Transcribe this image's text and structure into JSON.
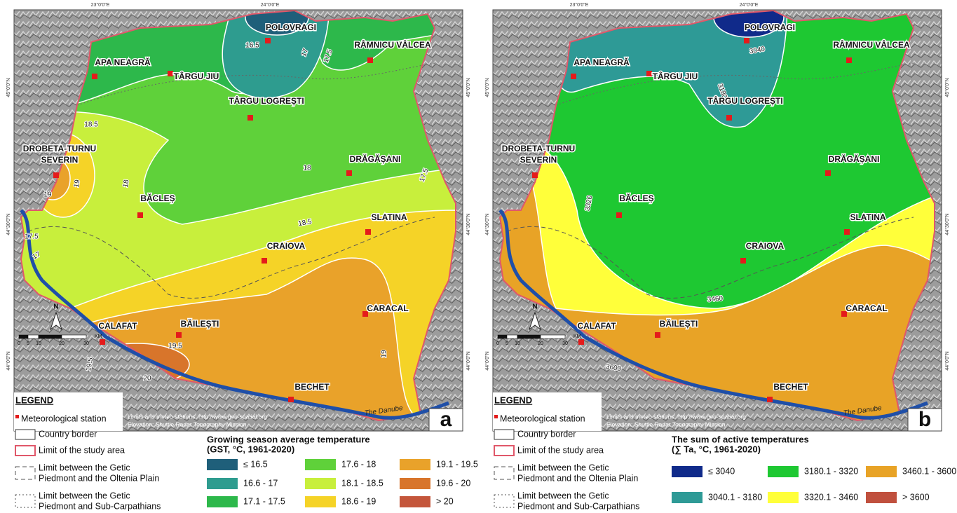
{
  "coordinate_labels": {
    "top": [
      "23°0'0\"E",
      "24°0'0\"E"
    ],
    "side": [
      "45°0'0\"N",
      "44°30'0\"N",
      "44°0'0\"N"
    ]
  },
  "stations": [
    "POLOVRAGI",
    "RÂMNICU VÂLCEA",
    "APA NEAGRĂ",
    "TÂRGU JIU",
    "TÂRGU LOGREȘTI",
    [
      "DROBETA-TURNU",
      "SEVERIN"
    ],
    "DRĂGĂȘANI",
    "BĂCLEȘ",
    "SLATINA",
    "CRAIOVA",
    "CARACAL",
    "CALAFAT",
    "BĂILEȘTI",
    "BECHET"
  ],
  "north_arrow": "N",
  "scale_bar": [
    "0",
    "5",
    "10",
    "20",
    "30",
    "KM"
  ],
  "source": [
    "Limits and meteo stations: http://www.geo-spatial.org",
    "Elevation: Shuttle Radar Topography Mission"
  ],
  "river": "The Danube",
  "legend": {
    "title": "LEGEND",
    "items": [
      [
        "Meteorological station"
      ],
      [
        "Country border"
      ],
      [
        "Limit of the study area"
      ],
      [
        "Limit between the Getic",
        "Piedmont and the Oltenia Plain"
      ],
      [
        "Limit between the Getic",
        "Piedmont and Sub-Carpathians"
      ]
    ]
  },
  "panels": [
    {
      "letter": "a",
      "title": [
        "Growing season average temperature",
        "(GST, °C, 1961-2020)"
      ],
      "classes": [
        {
          "label": "≤ 16.5",
          "color": "#1f5f7a"
        },
        {
          "label": "16.6 - 17",
          "color": "#2e9c8f"
        },
        {
          "label": "17.1 - 17.5",
          "color": "#2db84b"
        },
        {
          "label": "17.6 - 18",
          "color": "#5fd13a"
        },
        {
          "label": "18.1 - 18.5",
          "color": "#c8ef3c"
        },
        {
          "label": "18.6 - 19",
          "color": "#f5d327"
        },
        {
          "label": "19.1 - 19.5",
          "color": "#e9a22a"
        },
        {
          "label": "19.6 - 20",
          "color": "#d8752b"
        },
        {
          "label": "> 20",
          "color": "#c4563b"
        }
      ],
      "contour_labels": [
        "16.5",
        "17",
        "17.5",
        "18.5",
        "19",
        "19",
        "18",
        "18",
        "17.5",
        "18.5",
        "17.5",
        "17",
        "19.5",
        "19",
        "19.5",
        "20"
      ]
    },
    {
      "letter": "b",
      "title": [
        "The sum of active temperatures",
        "(∑ Ta, °C, 1961-2020)"
      ],
      "classes": [
        {
          "label": "≤ 3040",
          "color": "#102a8a"
        },
        {
          "label": "3040.1 - 3180",
          "color": "#2e9a96"
        },
        {
          "label": "3180.1 - 3320",
          "color": "#1ec832"
        },
        {
          "label": "3320.1 - 3460",
          "color": "#ffff3a"
        },
        {
          "label": "3460.1 - 3600",
          "color": "#e8a326"
        },
        {
          "label": "> 3600",
          "color": "#c0503e"
        }
      ],
      "contour_labels": [
        "3040",
        "3180",
        "3320",
        "3460",
        "3600"
      ]
    }
  ]
}
